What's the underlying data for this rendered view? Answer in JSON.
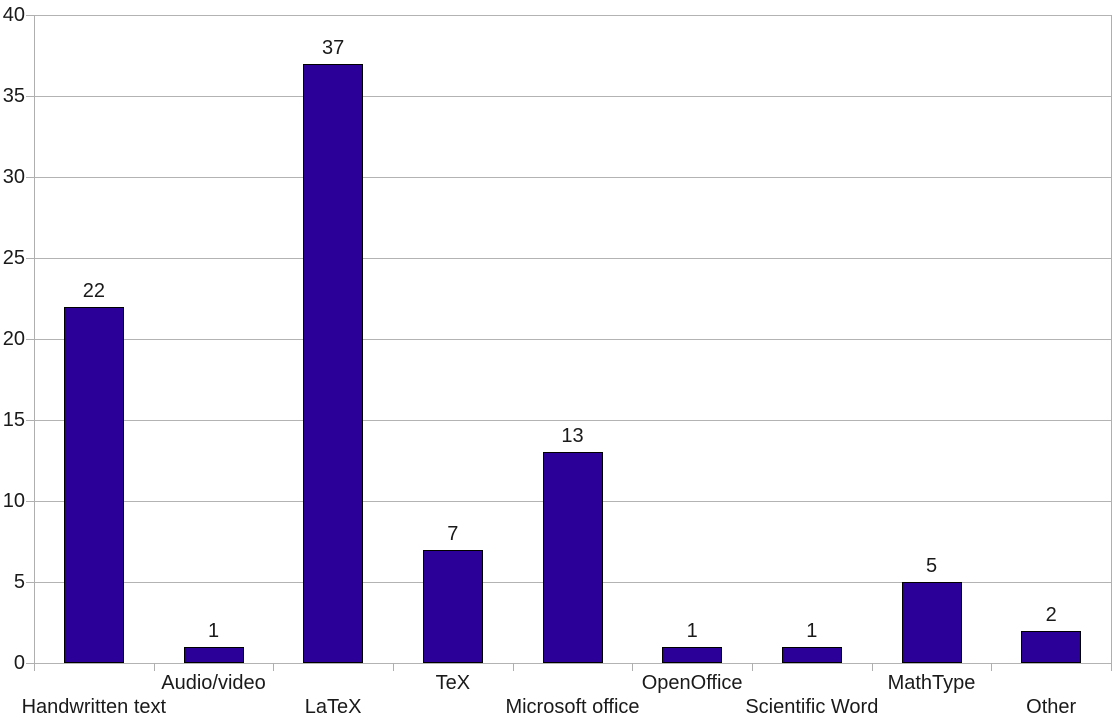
{
  "chart_data": {
    "type": "bar",
    "title": "",
    "xlabel": "",
    "ylabel": "",
    "categories": [
      "Handwritten text",
      "Audio/video",
      "LaTeX",
      "TeX",
      "Microsoft office",
      "OpenOffice",
      "Scientific Word",
      "MathType",
      "Other"
    ],
    "values": [
      22,
      1,
      37,
      7,
      13,
      1,
      1,
      5,
      2
    ],
    "bar_value_labels": [
      "22",
      "1",
      "37",
      "7",
      "13",
      "1",
      "1",
      "5",
      "2"
    ],
    "ylim": [
      0,
      40
    ],
    "yticks": [
      0,
      5,
      10,
      15,
      20,
      25,
      30,
      35,
      40
    ],
    "ytick_step": 5,
    "grid": true,
    "legend": "none",
    "label_layout": "staggered-two-rows",
    "colors": {
      "bar_fill": "#2A0099",
      "bar_border": "#000000",
      "gridline": "#B3B3B3",
      "axis_line": "#AFAFAF",
      "text": "#1A1A1A",
      "background": "#FFFFFF"
    }
  }
}
